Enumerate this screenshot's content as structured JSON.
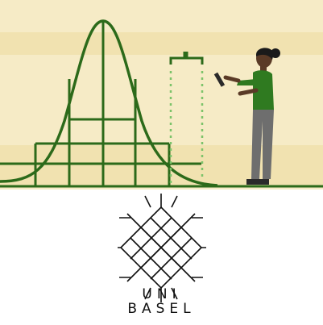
{
  "illustration": {
    "description_icon": "bell-curve-analyst-icon",
    "colors": {
      "background": "#f6ebc6",
      "band": "#f1e2b0",
      "curve": "#2c6a1a",
      "dotted": "#7cc36a",
      "shirt": "#2f7a20",
      "pants": "#6e6e6e",
      "skin": "#5a3a26",
      "hair": "#1a1a1a"
    }
  },
  "logo": {
    "icon": "university-star-emblem-icon",
    "line1": "UNI",
    "line2": "BASEL",
    "color": "#111111"
  }
}
